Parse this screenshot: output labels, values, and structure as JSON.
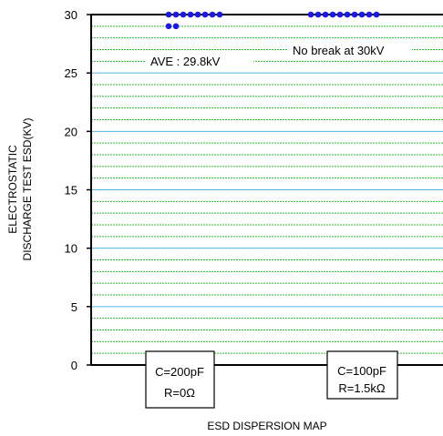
{
  "chart_data": {
    "type": "scatter",
    "title": "",
    "xlabel": "ESD DISPERSION MAP",
    "ylabel_lines": [
      "ELECTROSTATIC",
      "DISCHARGE TEST ESD(KV)"
    ],
    "ylim": [
      0,
      30
    ],
    "y_major_ticks": [
      0,
      5,
      10,
      15,
      20,
      25,
      30
    ],
    "y_tick_labels": [
      "0",
      "5",
      "10",
      "15",
      "20",
      "25",
      "30"
    ],
    "y_minor_step": 1,
    "grid": true,
    "colors": {
      "major_grid": "#4fb6e8",
      "minor_grid": "#33bb33",
      "points": "#1a1ae6",
      "axis": "#000000"
    },
    "groups": [
      {
        "condition_lines": [
          "C=200pF",
          "R=0Ω"
        ],
        "annotation": "AVE : 29.8kV",
        "points": [
          {
            "y": 30,
            "count": 8
          },
          {
            "y": 29,
            "count": 2
          }
        ]
      },
      {
        "condition_lines": [
          "C=100pF",
          "R=1.5kΩ"
        ],
        "annotation": "No break at 30kV",
        "points": [
          {
            "y": 30,
            "count": 10
          }
        ]
      }
    ]
  }
}
